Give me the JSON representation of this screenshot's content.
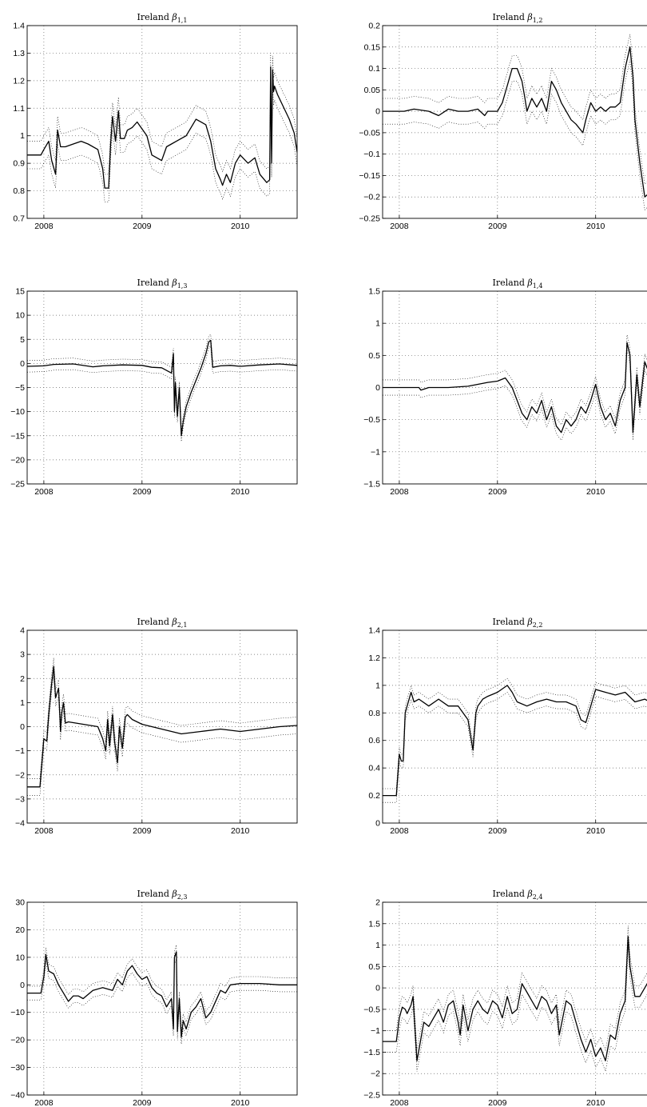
{
  "chart_data": [
    {
      "type": "line",
      "title_text": "Ireland",
      "title_symbol": "β",
      "title_subscript": "1,1",
      "xlim": [
        2007.83,
        2010.58
      ],
      "xticks": [
        2008,
        2009,
        2010
      ],
      "ylim": [
        0.7,
        1.4
      ],
      "yticks": [
        "0.7",
        "0.8",
        "0.9",
        "1",
        "1.1",
        "1.2",
        "1.3",
        "1.4"
      ],
      "band_width": 0.05,
      "series": [
        {
          "role": "estimate",
          "x": [
            2007.83,
            2007.97,
            2008.0,
            2008.05,
            2008.08,
            2008.12,
            2008.14,
            2008.17,
            2008.22,
            2008.3,
            2008.38,
            2008.45,
            2008.55,
            2008.6,
            2008.62,
            2008.66,
            2008.68,
            2008.7,
            2008.73,
            2008.76,
            2008.78,
            2008.82,
            2008.85,
            2008.9,
            2008.95,
            2009.05,
            2009.1,
            2009.2,
            2009.25,
            2009.3,
            2009.35,
            2009.45,
            2009.55,
            2009.65,
            2009.7,
            2009.75,
            2009.8,
            2009.82,
            2009.86,
            2009.9,
            2009.95,
            2010.0,
            2010.08,
            2010.15,
            2010.2,
            2010.27,
            2010.3,
            2010.31,
            2010.32,
            2010.33,
            2010.34,
            2010.35,
            2010.38,
            2010.42,
            2010.5,
            2010.55,
            2010.58
          ],
          "y": [
            0.93,
            0.93,
            0.95,
            0.98,
            0.91,
            0.86,
            1.02,
            0.96,
            0.96,
            0.97,
            0.98,
            0.97,
            0.95,
            0.88,
            0.81,
            0.81,
            0.97,
            1.07,
            0.98,
            1.09,
            0.99,
            0.99,
            1.02,
            1.03,
            1.05,
            1.0,
            0.93,
            0.91,
            0.96,
            0.97,
            0.98,
            1.0,
            1.06,
            1.04,
            0.98,
            0.88,
            0.84,
            0.82,
            0.86,
            0.83,
            0.9,
            0.93,
            0.9,
            0.92,
            0.86,
            0.83,
            0.84,
            1.25,
            0.9,
            1.24,
            1.16,
            1.18,
            1.15,
            1.12,
            1.06,
            1.01,
            0.94
          ]
        }
      ]
    },
    {
      "type": "line",
      "title_text": "Ireland",
      "title_symbol": "β",
      "title_subscript": "1,2",
      "xlim": [
        2007.83,
        2010.58
      ],
      "xticks": [
        2008,
        2009,
        2010
      ],
      "ylim": [
        -0.25,
        0.2
      ],
      "yticks": [
        "-0.25",
        "-0.2",
        "-0.15",
        "-0.1",
        "-0.05",
        "0",
        "0.05",
        "0.1",
        "0.15",
        "0.2"
      ],
      "band_width": 0.03,
      "series": [
        {
          "role": "estimate",
          "x": [
            2007.83,
            2008.05,
            2008.15,
            2008.3,
            2008.4,
            2008.5,
            2008.6,
            2008.7,
            2008.8,
            2008.87,
            2008.9,
            2009.0,
            2009.05,
            2009.1,
            2009.15,
            2009.2,
            2009.25,
            2009.28,
            2009.3,
            2009.35,
            2009.4,
            2009.45,
            2009.5,
            2009.55,
            2009.6,
            2009.65,
            2009.7,
            2009.75,
            2009.8,
            2009.87,
            2009.9,
            2009.95,
            2010.0,
            2010.05,
            2010.1,
            2010.15,
            2010.2,
            2010.25,
            2010.3,
            2010.35,
            2010.38,
            2010.4,
            2010.45,
            2010.5,
            2010.55,
            2010.58
          ],
          "y": [
            0.0,
            0.0,
            0.005,
            0.0,
            -0.01,
            0.005,
            0.0,
            0.0,
            0.005,
            -0.01,
            0.0,
            0.0,
            0.02,
            0.06,
            0.1,
            0.1,
            0.07,
            0.03,
            0.0,
            0.03,
            0.01,
            0.03,
            0.0,
            0.07,
            0.05,
            0.02,
            0.0,
            -0.02,
            -0.03,
            -0.05,
            -0.02,
            0.02,
            0.0,
            0.01,
            0.0,
            0.01,
            0.01,
            0.02,
            0.1,
            0.15,
            0.08,
            -0.02,
            -0.12,
            -0.2,
            -0.19,
            -0.2
          ]
        }
      ]
    },
    {
      "type": "line",
      "title_text": "Ireland",
      "title_symbol": "β",
      "title_subscript": "1,3",
      "xlim": [
        2007.83,
        2010.58
      ],
      "xticks": [
        2008,
        2009,
        2010
      ],
      "ylim": [
        -25,
        15
      ],
      "yticks": [
        "-25",
        "-20",
        "-15",
        "-10",
        "-5",
        "0",
        "5",
        "10",
        "15"
      ],
      "band_width": 1.2,
      "series": [
        {
          "role": "estimate",
          "x": [
            2007.83,
            2008.0,
            2008.1,
            2008.3,
            2008.5,
            2008.6,
            2008.8,
            2009.0,
            2009.1,
            2009.2,
            2009.3,
            2009.32,
            2009.33,
            2009.34,
            2009.36,
            2009.38,
            2009.4,
            2009.42,
            2009.45,
            2009.5,
            2009.55,
            2009.6,
            2009.65,
            2009.68,
            2009.7,
            2009.72,
            2009.8,
            2009.9,
            2010.0,
            2010.2,
            2010.4,
            2010.58
          ],
          "y": [
            -0.6,
            -0.5,
            -0.2,
            -0.1,
            -0.7,
            -0.5,
            -0.3,
            -0.4,
            -0.8,
            -0.9,
            -2.0,
            2.0,
            -10.0,
            -4.0,
            -11.0,
            -5.0,
            -15.0,
            -12.0,
            -9.0,
            -6.0,
            -3.5,
            -1.0,
            2.0,
            4.5,
            4.8,
            -0.8,
            -0.5,
            -0.4,
            -0.6,
            -0.3,
            -0.1,
            -0.4
          ]
        }
      ]
    },
    {
      "type": "line",
      "title_text": "Ireland",
      "title_symbol": "β",
      "title_subscript": "1,4",
      "xlim": [
        2007.83,
        2010.58
      ],
      "xticks": [
        2008,
        2009,
        2010
      ],
      "ylim": [
        -1.5,
        1.5
      ],
      "yticks": [
        "-1.5",
        "-1",
        "-0.5",
        "0",
        "0.5",
        "1",
        "1.5"
      ],
      "band_width": 0.12,
      "series": [
        {
          "role": "estimate",
          "x": [
            2007.83,
            2008.2,
            2008.22,
            2008.3,
            2008.5,
            2008.7,
            2008.8,
            2008.9,
            2009.0,
            2009.08,
            2009.15,
            2009.2,
            2009.25,
            2009.3,
            2009.35,
            2009.4,
            2009.45,
            2009.5,
            2009.55,
            2009.6,
            2009.65,
            2009.7,
            2009.75,
            2009.8,
            2009.85,
            2009.9,
            2009.95,
            2010.0,
            2010.05,
            2010.1,
            2010.15,
            2010.2,
            2010.25,
            2010.3,
            2010.32,
            2010.35,
            2010.38,
            2010.42,
            2010.45,
            2010.5,
            2010.55,
            2010.58
          ],
          "y": [
            0.0,
            0.0,
            -0.04,
            0.0,
            0.0,
            0.02,
            0.05,
            0.08,
            0.1,
            0.15,
            0.0,
            -0.2,
            -0.4,
            -0.5,
            -0.3,
            -0.4,
            -0.2,
            -0.5,
            -0.3,
            -0.6,
            -0.7,
            -0.5,
            -0.6,
            -0.5,
            -0.3,
            -0.4,
            -0.2,
            0.05,
            -0.3,
            -0.5,
            -0.4,
            -0.6,
            -0.2,
            0.0,
            0.7,
            0.5,
            -0.7,
            0.2,
            -0.3,
            0.4,
            0.2,
            0.3
          ]
        }
      ]
    },
    {
      "type": "line",
      "title_text": "Ireland",
      "title_symbol": "β",
      "title_subscript": "2,1",
      "xlim": [
        2007.83,
        2010.58
      ],
      "xticks": [
        2008,
        2009,
        2010
      ],
      "ylim": [
        -4,
        4
      ],
      "yticks": [
        "-4",
        "-3",
        "-2",
        "-1",
        "0",
        "1",
        "2",
        "3",
        "4"
      ],
      "band_width": 0.35,
      "series": [
        {
          "role": "estimate",
          "x": [
            2007.83,
            2007.96,
            2008.0,
            2008.03,
            2008.05,
            2008.08,
            2008.1,
            2008.12,
            2008.15,
            2008.17,
            2008.18,
            2008.2,
            2008.22,
            2008.25,
            2008.4,
            2008.55,
            2008.6,
            2008.63,
            2008.65,
            2008.67,
            2008.7,
            2008.72,
            2008.75,
            2008.77,
            2008.8,
            2008.83,
            2008.85,
            2008.9,
            2009.0,
            2009.2,
            2009.4,
            2009.6,
            2009.8,
            2010.0,
            2010.2,
            2010.4,
            2010.58
          ],
          "y": [
            -2.5,
            -2.5,
            -0.5,
            -0.6,
            0.5,
            1.8,
            2.5,
            1.2,
            1.6,
            -0.2,
            0.5,
            1.0,
            0.15,
            0.2,
            0.1,
            0.0,
            -0.5,
            -1.0,
            0.3,
            -0.8,
            0.5,
            -0.6,
            -1.5,
            0.0,
            -0.9,
            0.4,
            0.5,
            0.3,
            0.1,
            -0.1,
            -0.3,
            -0.2,
            -0.1,
            -0.2,
            -0.1,
            0.0,
            0.05
          ]
        }
      ]
    },
    {
      "type": "line",
      "title_text": "Ireland",
      "title_symbol": "β",
      "title_subscript": "2,2",
      "xlim": [
        2007.83,
        2010.58
      ],
      "xticks": [
        2008,
        2009,
        2010
      ],
      "ylim": [
        0,
        1.4
      ],
      "yticks": [
        "0",
        "0.2",
        "0.4",
        "0.6",
        "0.8",
        "1",
        "1.2",
        "1.4"
      ],
      "band_width": 0.05,
      "series": [
        {
          "role": "estimate",
          "x": [
            2007.83,
            2007.97,
            2008.0,
            2008.02,
            2008.04,
            2008.06,
            2008.08,
            2008.1,
            2008.12,
            2008.15,
            2008.2,
            2008.3,
            2008.4,
            2008.5,
            2008.6,
            2008.7,
            2008.75,
            2008.78,
            2008.8,
            2008.85,
            2008.9,
            2009.0,
            2009.1,
            2009.15,
            2009.2,
            2009.3,
            2009.4,
            2009.5,
            2009.6,
            2009.7,
            2009.8,
            2009.85,
            2009.9,
            2009.95,
            2010.0,
            2010.1,
            2010.2,
            2010.3,
            2010.4,
            2010.5,
            2010.55,
            2010.58
          ],
          "y": [
            0.2,
            0.2,
            0.5,
            0.45,
            0.45,
            0.8,
            0.85,
            0.9,
            0.95,
            0.88,
            0.9,
            0.85,
            0.9,
            0.85,
            0.85,
            0.75,
            0.53,
            0.8,
            0.85,
            0.9,
            0.92,
            0.95,
            1.0,
            0.95,
            0.88,
            0.85,
            0.88,
            0.9,
            0.88,
            0.88,
            0.85,
            0.75,
            0.73,
            0.85,
            0.97,
            0.95,
            0.93,
            0.95,
            0.88,
            0.9,
            0.88,
            0.75
          ]
        }
      ]
    },
    {
      "type": "line",
      "title_text": "Ireland",
      "title_symbol": "β",
      "title_subscript": "2,3",
      "xlim": [
        2007.83,
        2010.58
      ],
      "xticks": [
        2008,
        2009,
        2010
      ],
      "ylim": [
        -40,
        30
      ],
      "yticks": [
        "-40",
        "-30",
        "-20",
        "-10",
        "0",
        "10",
        "20",
        "30"
      ],
      "band_width": 2.5,
      "series": [
        {
          "role": "estimate",
          "x": [
            2007.83,
            2007.97,
            2008.0,
            2008.02,
            2008.05,
            2008.1,
            2008.15,
            2008.2,
            2008.25,
            2008.3,
            2008.35,
            2008.4,
            2008.5,
            2008.6,
            2008.7,
            2008.75,
            2008.8,
            2008.85,
            2008.9,
            2008.95,
            2009.0,
            2009.05,
            2009.1,
            2009.15,
            2009.2,
            2009.25,
            2009.3,
            2009.32,
            2009.33,
            2009.35,
            2009.36,
            2009.38,
            2009.4,
            2009.42,
            2009.45,
            2009.5,
            2009.55,
            2009.6,
            2009.65,
            2009.7,
            2009.8,
            2009.85,
            2009.9,
            2010.0,
            2010.2,
            2010.4,
            2010.58
          ],
          "y": [
            -3,
            -3,
            3,
            11,
            5,
            4,
            0,
            -3,
            -6,
            -4,
            -4,
            -5,
            -2,
            -1,
            -2,
            2,
            0,
            5,
            7,
            4,
            2,
            3,
            -1,
            -3,
            -4,
            -8,
            -5,
            -16,
            10,
            12,
            -17,
            -5,
            -19,
            -13,
            -16,
            -10,
            -8,
            -5,
            -12,
            -10,
            -2,
            -3,
            0,
            0.5,
            0.5,
            0,
            0
          ]
        }
      ]
    },
    {
      "type": "line",
      "title_text": "Ireland",
      "title_symbol": "β",
      "title_subscript": "2,4",
      "xlim": [
        2007.83,
        2010.58
      ],
      "xticks": [
        2008,
        2009,
        2010
      ],
      "ylim": [
        -2.5,
        2
      ],
      "yticks": [
        "-2.5",
        "-2",
        "-1.5",
        "-1",
        "-0.5",
        "0",
        "0.5",
        "1",
        "1.5",
        "2"
      ],
      "band_width": 0.25,
      "series": [
        {
          "role": "estimate",
          "x": [
            2007.83,
            2007.97,
            2008.0,
            2008.03,
            2008.06,
            2008.08,
            2008.1,
            2008.12,
            2008.14,
            2008.18,
            2008.25,
            2008.3,
            2008.35,
            2008.4,
            2008.45,
            2008.5,
            2008.55,
            2008.6,
            2008.62,
            2008.65,
            2008.7,
            2008.75,
            2008.8,
            2008.85,
            2008.9,
            2008.95,
            2009.0,
            2009.05,
            2009.1,
            2009.15,
            2009.2,
            2009.25,
            2009.3,
            2009.35,
            2009.4,
            2009.45,
            2009.5,
            2009.55,
            2009.6,
            2009.63,
            2009.7,
            2009.75,
            2009.8,
            2009.85,
            2009.9,
            2009.95,
            2010.0,
            2010.05,
            2010.1,
            2010.15,
            2010.2,
            2010.25,
            2010.3,
            2010.33,
            2010.35,
            2010.4,
            2010.45,
            2010.5,
            2010.55,
            2010.58
          ],
          "y": [
            -1.25,
            -1.25,
            -0.7,
            -0.45,
            -0.5,
            -0.6,
            -0.5,
            -0.4,
            -0.2,
            -1.7,
            -0.8,
            -0.9,
            -0.7,
            -0.5,
            -0.8,
            -0.4,
            -0.3,
            -0.8,
            -1.1,
            -0.4,
            -1.0,
            -0.5,
            -0.3,
            -0.5,
            -0.6,
            -0.3,
            -0.4,
            -0.7,
            -0.2,
            -0.6,
            -0.5,
            0.1,
            -0.1,
            -0.3,
            -0.5,
            -0.2,
            -0.3,
            -0.6,
            -0.4,
            -1.1,
            -0.3,
            -0.4,
            -0.8,
            -1.2,
            -1.5,
            -1.2,
            -1.6,
            -1.4,
            -1.7,
            -1.1,
            -1.2,
            -0.6,
            -0.3,
            1.2,
            0.5,
            -0.2,
            -0.2,
            0.0,
            0.2,
            0.2
          ]
        }
      ]
    }
  ]
}
